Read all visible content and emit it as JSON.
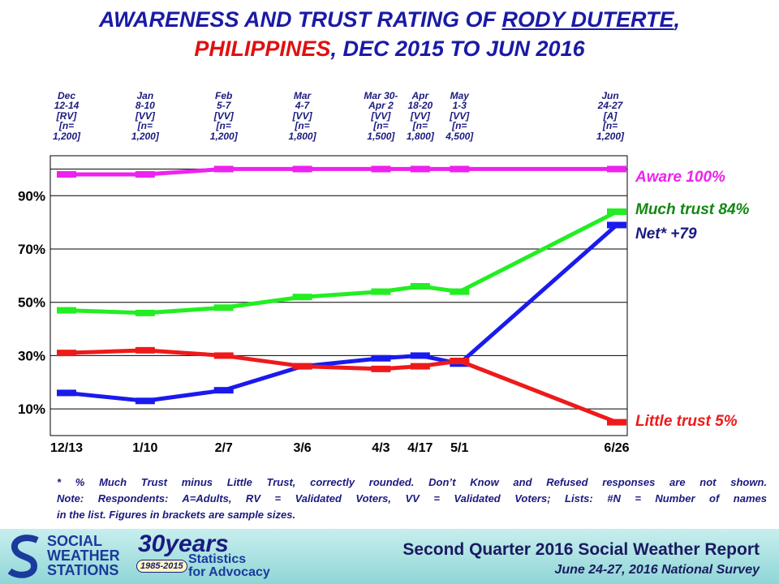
{
  "title": {
    "line1_prefix": "AWARENESS AND TRUST RATING OF ",
    "line1_name": "RODY DUTERTE",
    "line1_suffix": ",",
    "line2_country": "PHILIPPINES",
    "line2_rest": ", DEC 2015 TO JUN 2016"
  },
  "survey_headers": [
    "Dec\n12-14\n[RV]\n[n=\n1,200]",
    "Jan\n8-10\n[VV]\n[n=\n1,200]",
    "Feb\n5-7\n[VV]\n[n=\n1,200]",
    "Mar\n4-7\n[VV]\n[n=\n1,800]",
    "Mar 30-\nApr 2\n[VV]\n[n=\n1,500]",
    "Apr\n18-20\n[VV]\n[n=\n1,800]",
    "May\n1-3\n[VV]\n[n=\n4,500]",
    "Jun\n24-27\n[A]\n[n=\n1,200]"
  ],
  "series_labels": {
    "aware": "Aware 100%",
    "much_trust": "Much trust 84%",
    "net": "Net* +79",
    "little_trust": "Little trust 5%"
  },
  "footnote": [
    "* % Much Trust minus Little Trust, correctly rounded. Don’t Know and Refused responses are not shown.",
    "Note: Respondents: A=Adults, RV = Validated Voters, VV = Validated Voters; Lists: #N = Number of names",
    "in the list. Figures in brackets are sample sizes."
  ],
  "footer": {
    "org_name": "SOCIAL\nWEATHER\nSTATIONS",
    "years": "30years",
    "year_range": "1985-2015",
    "tagline": "Statistics\nfor Advocacy",
    "report_title": "Second Quarter 2016 Social Weather Report",
    "report_subtitle": "June 24-27, 2016 National Survey"
  },
  "chart_data": {
    "type": "line",
    "x_labels": [
      "12/13",
      "1/10",
      "2/7",
      "3/6",
      "4/3",
      "4/17",
      "5/1",
      "6/26"
    ],
    "x_days": [
      0,
      28,
      56,
      84,
      112,
      126,
      140,
      196
    ],
    "y_tick_labels": [
      "10%",
      "30%",
      "50%",
      "70%",
      "90%"
    ],
    "y_ticks": [
      10,
      30,
      50,
      70,
      90
    ],
    "ylim": [
      0,
      105
    ],
    "grid": true,
    "series": [
      {
        "name": "Aware",
        "color": "#ee22ee",
        "values": [
          98,
          98,
          100,
          100,
          100,
          100,
          100,
          100
        ]
      },
      {
        "name": "Much trust",
        "color": "#22ee22",
        "values": [
          47,
          46,
          48,
          52,
          54,
          56,
          54,
          84
        ]
      },
      {
        "name": "Net*",
        "color": "#1a1aee",
        "values": [
          16,
          13,
          17,
          26,
          29,
          30,
          27,
          79
        ]
      },
      {
        "name": "Little trust",
        "color": "#ee1a1a",
        "values": [
          31,
          32,
          30,
          26,
          25,
          26,
          28,
          5
        ]
      }
    ]
  }
}
